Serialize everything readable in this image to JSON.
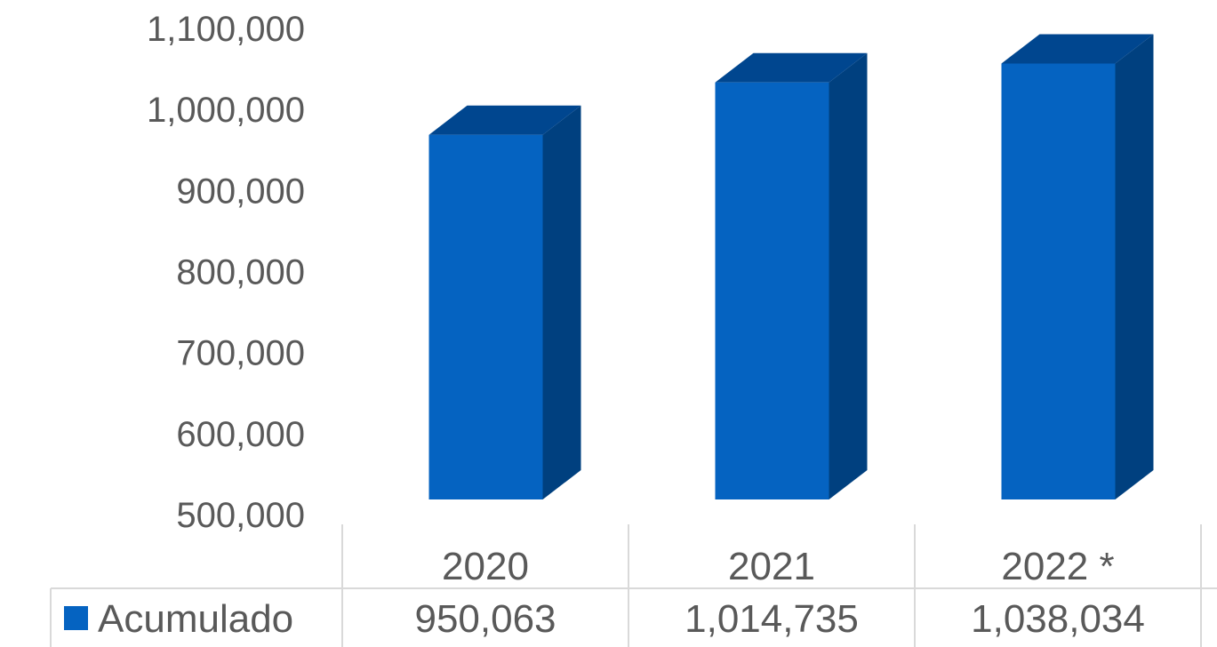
{
  "chart_data": {
    "type": "bar",
    "title": "",
    "xlabel": "",
    "ylabel": "",
    "categories": [
      "2020",
      "2021",
      "2022 *"
    ],
    "series": [
      {
        "name": "Acumulado",
        "values": [
          950063,
          1014735,
          1038034
        ]
      }
    ],
    "value_labels": [
      "950,063",
      "1,014,735",
      "1,038,034"
    ],
    "ylim": [
      500000,
      1100000
    ],
    "yticks": [
      500000,
      600000,
      700000,
      800000,
      900000,
      1000000,
      1100000
    ],
    "ytick_labels": [
      "500,000",
      "600,000",
      "700,000",
      "800,000",
      "900,000",
      "1,000,000",
      "1,100,000"
    ],
    "grid": false,
    "data_table": true,
    "three_d": true,
    "colors": {
      "front": "#0563C1",
      "side": "#00407F",
      "top": "#00468F",
      "text": "#595959",
      "table_border": "#D9D9D9"
    }
  }
}
